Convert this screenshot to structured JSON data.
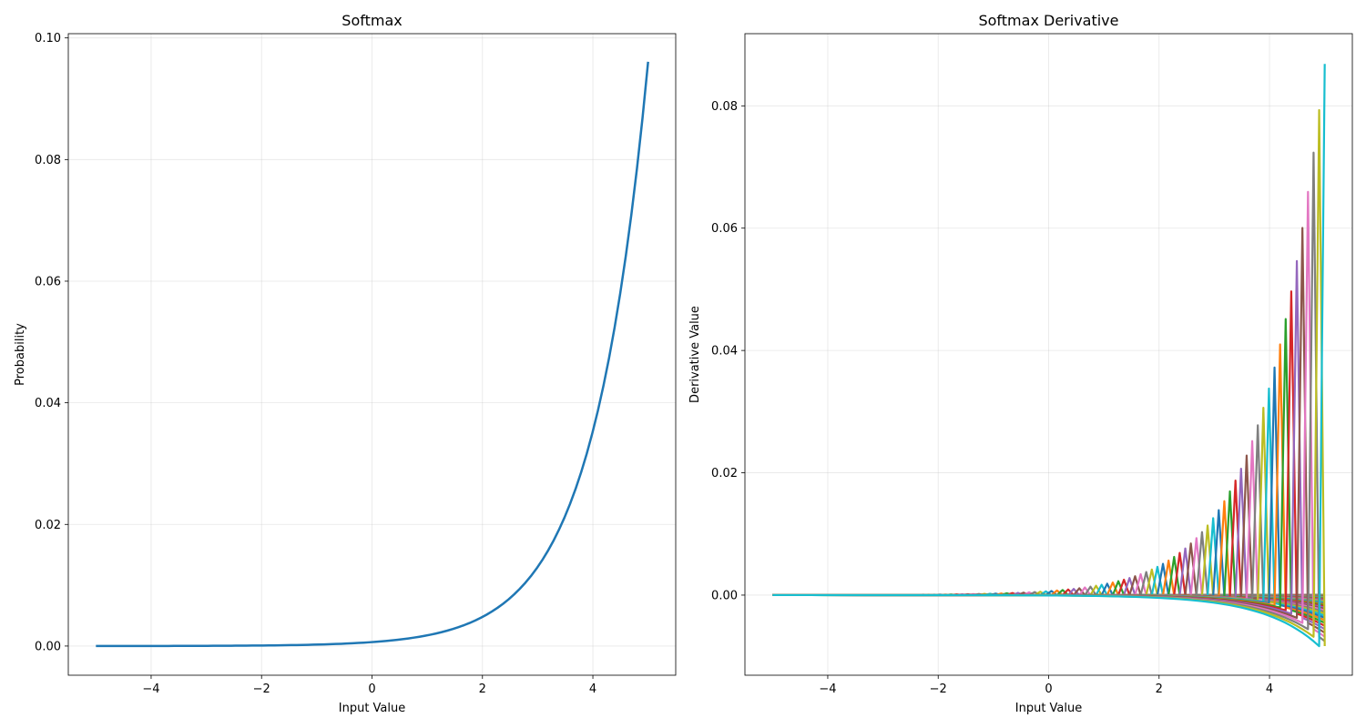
{
  "chart_data": [
    {
      "type": "line",
      "title": "Softmax",
      "xlabel": "Input Value",
      "ylabel": "Probability",
      "xlim": [
        -5.5,
        5.5
      ],
      "ylim": [
        -0.0048,
        0.1007
      ],
      "xticks": [
        -4,
        -2,
        0,
        2,
        4
      ],
      "xtick_labels": [
        "−4",
        "−2",
        "0",
        "2",
        "4"
      ],
      "yticks": [
        0.0,
        0.02,
        0.04,
        0.06,
        0.08,
        0.1
      ],
      "ytick_labels": [
        "0.00",
        "0.02",
        "0.04",
        "0.06",
        "0.08",
        "0.10"
      ],
      "grid": true,
      "series": [
        {
          "color": "#1f77b4",
          "function": "softmax",
          "x_range": [
            -5,
            5
          ],
          "num_points": 100
        }
      ]
    },
    {
      "type": "line",
      "title": "Softmax Derivative",
      "xlabel": "Input Value",
      "ylabel": "Derivative Value",
      "xlim": [
        -5.5,
        5.5
      ],
      "ylim": [
        -0.0131,
        0.0918
      ],
      "xticks": [
        -4,
        -2,
        0,
        2,
        4
      ],
      "xtick_labels": [
        "−4",
        "−2",
        "0",
        "2",
        "4"
      ],
      "yticks": [
        0.0,
        0.02,
        0.04,
        0.06,
        0.08
      ],
      "ytick_labels": [
        "0.00",
        "0.02",
        "0.04",
        "0.06",
        "0.08"
      ],
      "grid": true,
      "series_count": 100,
      "series": [
        {
          "function": "softmax_jacobian_rows",
          "x_range": [
            -5,
            5
          ],
          "num_points": 100
        }
      ],
      "color_cycle": [
        "#1f77b4",
        "#ff7f0e",
        "#2ca02c",
        "#d62728",
        "#9467bd",
        "#8c564b",
        "#e377c2",
        "#7f7f7f",
        "#bcbd22",
        "#17becf"
      ]
    }
  ]
}
